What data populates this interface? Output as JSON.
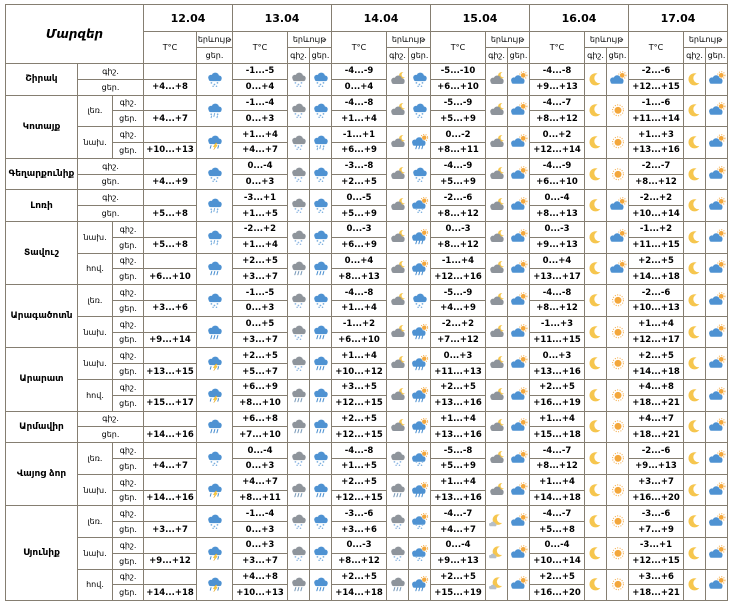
{
  "header": {
    "title": "Մարզեր",
    "temp": "T°C",
    "phenomenon": "երևույթ",
    "night": "գիշ.",
    "day": "ցեր."
  },
  "dates": [
    "12.04",
    "13.04",
    "14.04",
    "15.04",
    "16.04",
    "17.04"
  ],
  "colors": {
    "border": "#857e71",
    "cloud_blue": "#4e92d2",
    "cloud_gray": "#8e949b",
    "cloud_light": "#b6bfc7",
    "sun": "#f3a73c",
    "moon": "#f6c64e",
    "snow_dot": "#79aede",
    "snow_dot_dim": "#8fb7e2",
    "rain_line": "#4e92d2",
    "rain_line_dim": "#7d9dbb",
    "bolt": "#ffd23e"
  },
  "icon_types": [
    "snow-cloud-icon",
    "sleet-cloud-icon",
    "rain-cloud-icon",
    "storm-cloud-icon",
    "gray-snow-cloud-icon",
    "gray-rain-cloud-icon",
    "cloud-moon-icon",
    "moon-icon",
    "moon-small-cloud-icon",
    "sun-icon",
    "sun-cloud-icon",
    "sun-cloud-snow-icon",
    "sun-cloud-rain-icon"
  ],
  "regions": [
    {
      "name": "Շիրակ",
      "zones": [
        {
          "level": null,
          "night_temps": [
            "",
            "-1...-5",
            "-4...-9",
            "-5...-10",
            "-4...-8",
            "-2...-6"
          ],
          "day_temps": [
            "+4...+8",
            "0...+4",
            "0...+4",
            "+6...+10",
            "+9...+13",
            "+12...+15"
          ],
          "night_icons": [
            null,
            "gray-snow",
            "cloud-moon",
            "cloud-moon",
            "moon",
            "moon"
          ],
          "day_icons": [
            "snow",
            "snow",
            "snow",
            "sun-cloud",
            "sun-cloud",
            "sun-cloud"
          ]
        }
      ]
    },
    {
      "name": "Կոտայք",
      "zones": [
        {
          "level": "լեռ.",
          "night_temps": [
            "",
            "-1...-4",
            "-4...-8",
            "-5...-9",
            "-4...-7",
            "-1...-6"
          ],
          "day_temps": [
            "+4...+7",
            "0...+3",
            "+1...+4",
            "+5...+9",
            "+8...+12",
            "+11...+14"
          ],
          "night_icons": [
            null,
            "gray-snow",
            "cloud-moon",
            "cloud-moon",
            "moon",
            "moon"
          ],
          "day_icons": [
            "sleet",
            "snow",
            "snow",
            "sun-cloud",
            "sun",
            "sun-cloud"
          ]
        },
        {
          "level": "նախ.",
          "night_temps": [
            "",
            "+1...+4",
            "-1...+1",
            "0...-2",
            "0...+2",
            "+1...+3"
          ],
          "day_temps": [
            "+10...+13",
            "+4...+7",
            "+6...+9",
            "+8...+11",
            "+12...+14",
            "+13...+16"
          ],
          "night_icons": [
            null,
            "gray-snow",
            "cloud-moon",
            "cloud-moon",
            "moon",
            "moon"
          ],
          "day_icons": [
            "storm",
            "sleet",
            "sun-cloud-rain",
            "sun-cloud",
            "sun",
            "sun-cloud"
          ]
        }
      ]
    },
    {
      "name": "Գեղարքունիք",
      "zones": [
        {
          "level": null,
          "night_temps": [
            "",
            "0...-4",
            "-3...-8",
            "-4...-9",
            "-4...-9",
            "-2...-7"
          ],
          "day_temps": [
            "+4...+9",
            "0...+3",
            "+2...+5",
            "+5...+9",
            "+6...+10",
            "+8...+12"
          ],
          "night_icons": [
            null,
            "gray-snow",
            "cloud-moon",
            "cloud-moon",
            "moon",
            "moon"
          ],
          "day_icons": [
            "snow",
            "snow",
            "snow",
            "sun-cloud",
            "sun",
            "sun-cloud"
          ]
        }
      ]
    },
    {
      "name": "Լոռի",
      "zones": [
        {
          "level": null,
          "night_temps": [
            "",
            "-3...+1",
            "0...-5",
            "-2...-6",
            "0...-4",
            "-2...+2"
          ],
          "day_temps": [
            "+5...+8",
            "+1...+5",
            "+5...+9",
            "+8...+12",
            "+8...+13",
            "+10...+14"
          ],
          "night_icons": [
            null,
            "gray-snow",
            "cloud-moon",
            "cloud-moon",
            "moon",
            "moon"
          ],
          "day_icons": [
            "sleet",
            "snow",
            "sun-cloud-snow",
            "sun-cloud",
            "sun-cloud",
            "sun-cloud"
          ]
        }
      ]
    },
    {
      "name": "Տավուշ",
      "zones": [
        {
          "level": "նախ.",
          "night_temps": [
            "",
            "-2...+2",
            "0...-3",
            "0...-3",
            "0...-3",
            "-1...+2"
          ],
          "day_temps": [
            "+5...+8",
            "+1...+4",
            "+6...+9",
            "+8...+12",
            "+9...+13",
            "+11...+15"
          ],
          "night_icons": [
            null,
            "gray-snow",
            "cloud-moon",
            "cloud-moon",
            "moon",
            "moon"
          ],
          "day_icons": [
            "sleet",
            "snow",
            "sun-cloud-rain",
            "sun-cloud",
            "sun-cloud",
            "sun-cloud"
          ]
        },
        {
          "level": "հով.",
          "night_temps": [
            "",
            "+2...+5",
            "0...+4",
            "-1...+4",
            "0...+4",
            "+2...+5"
          ],
          "day_temps": [
            "+6...+10",
            "+3...+7",
            "+8...+13",
            "+12...+16",
            "+13...+17",
            "+14...+18"
          ],
          "night_icons": [
            null,
            "gray-rain",
            "cloud-moon",
            "cloud-moon",
            "moon",
            "moon"
          ],
          "day_icons": [
            "rain",
            "rain",
            "sun-cloud-rain",
            "sun-cloud",
            "sun-cloud",
            "sun-cloud"
          ]
        }
      ]
    },
    {
      "name": "Արագածոտն",
      "zones": [
        {
          "level": "լեռ.",
          "night_temps": [
            "",
            "-1...-5",
            "-4...-8",
            "-5...-9",
            "-4...-8",
            "-2...-6"
          ],
          "day_temps": [
            "+3...+6",
            "0...+3",
            "+1...+4",
            "+4...+9",
            "+8...+12",
            "+10...+13"
          ],
          "night_icons": [
            null,
            "gray-snow",
            "cloud-moon",
            "cloud-moon",
            "moon",
            "moon"
          ],
          "day_icons": [
            "snow",
            "snow",
            "snow",
            "sun-cloud",
            "sun",
            "sun-cloud"
          ]
        },
        {
          "level": "նախ.",
          "night_temps": [
            "",
            "0...+5",
            "-1...+2",
            "-2...+2",
            "-1...+3",
            "+1...+4"
          ],
          "day_temps": [
            "+9...+14",
            "+3...+7",
            "+6...+10",
            "+7...+12",
            "+11...+15",
            "+12...+17"
          ],
          "night_icons": [
            null,
            "gray-snow",
            "cloud-moon",
            "cloud-moon",
            "moon",
            "moon"
          ],
          "day_icons": [
            "rain",
            "rain",
            "sun-cloud-rain",
            "sun-cloud",
            "sun",
            "sun-cloud"
          ]
        }
      ]
    },
    {
      "name": "Արարատ",
      "zones": [
        {
          "level": "նախ.",
          "night_temps": [
            "",
            "+2...+5",
            "+1...+4",
            "0...+3",
            "0...+3",
            "+2...+5"
          ],
          "day_temps": [
            "+13...+15",
            "+5...+7",
            "+10...+12",
            "+11...+13",
            "+13...+16",
            "+14...+18"
          ],
          "night_icons": [
            null,
            "gray-snow",
            "cloud-moon",
            "cloud-moon",
            "moon",
            "moon"
          ],
          "day_icons": [
            "storm",
            "rain",
            "sun-cloud-rain",
            "sun-cloud",
            "sun",
            "sun-cloud"
          ]
        },
        {
          "level": "հով.",
          "night_temps": [
            "",
            "+6...+9",
            "+3...+5",
            "+2...+5",
            "+2...+5",
            "+4...+8"
          ],
          "day_temps": [
            "+15...+17",
            "+8...+10",
            "+12...+15",
            "+13...+16",
            "+16...+19",
            "+18...+21"
          ],
          "night_icons": [
            null,
            "gray-rain",
            "cloud-moon",
            "cloud-moon",
            "moon",
            "moon"
          ],
          "day_icons": [
            "storm",
            "rain",
            "sun-cloud-rain",
            "sun-cloud",
            "sun",
            "sun-cloud"
          ]
        }
      ]
    },
    {
      "name": "Արմավիր",
      "zones": [
        {
          "level": null,
          "night_temps": [
            "",
            "+6...+8",
            "+2...+5",
            "+1...+4",
            "+1...+4",
            "+4...+7"
          ],
          "day_temps": [
            "+14...+16",
            "+7...+10",
            "+12...+15",
            "+13...+16",
            "+15...+18",
            "+18...+21"
          ],
          "night_icons": [
            null,
            "gray-rain",
            "cloud-moon",
            "cloud-moon",
            "moon",
            "moon"
          ],
          "day_icons": [
            "rain",
            "rain",
            "sun-cloud-rain",
            "sun-cloud",
            "sun",
            "sun-cloud"
          ]
        }
      ]
    },
    {
      "name": "Վայոց ձոր",
      "zones": [
        {
          "level": "լեռ.",
          "night_temps": [
            "",
            "0...-4",
            "-4...-8",
            "-5...-8",
            "-4...-7",
            "-2...-6"
          ],
          "day_temps": [
            "+4...+7",
            "0...+3",
            "+1...+5",
            "+5...+9",
            "+8...+12",
            "+9...+13"
          ],
          "night_icons": [
            null,
            "gray-snow",
            "gray-snow",
            "cloud-moon",
            "moon",
            "moon"
          ],
          "day_icons": [
            "snow",
            "snow",
            "sun-cloud-snow",
            "sun-cloud",
            "sun",
            "sun-cloud"
          ]
        },
        {
          "level": "նախ.",
          "night_temps": [
            "",
            "+4...+7",
            "+2...+5",
            "+1...+4",
            "+1...+4",
            "+3...+7"
          ],
          "day_temps": [
            "+14...+16",
            "+8...+11",
            "+12...+15",
            "+13...+16",
            "+14...+18",
            "+16...+20"
          ],
          "night_icons": [
            null,
            "gray-rain",
            "gray-rain",
            "cloud-moon",
            "moon",
            "moon"
          ],
          "day_icons": [
            "storm",
            "rain",
            "sun-cloud-rain",
            "sun-cloud",
            "sun",
            "sun-cloud"
          ]
        }
      ]
    },
    {
      "name": "Սյունիք",
      "zones": [
        {
          "level": "լեռ.",
          "night_temps": [
            "",
            "-1...-4",
            "-3...-6",
            "-4...-7",
            "-4...-7",
            "-3...-6"
          ],
          "day_temps": [
            "+3...+7",
            "0...+3",
            "+3...+6",
            "+4...+7",
            "+5...+8",
            "+7...+9"
          ],
          "night_icons": [
            null,
            "gray-snow",
            "gray-snow",
            "moon-cloud",
            "moon",
            "moon"
          ],
          "day_icons": [
            "snow",
            "snow",
            "sun-cloud-snow",
            "sun-cloud",
            "sun",
            "sun-cloud"
          ]
        },
        {
          "level": "նախ.",
          "night_temps": [
            "",
            "0...+3",
            "0...-3",
            "0...-4",
            "0...-4",
            "-3...+1"
          ],
          "day_temps": [
            "+9...+12",
            "+3...+7",
            "+8...+12",
            "+9...+13",
            "+10...+14",
            "+12...+15"
          ],
          "night_icons": [
            null,
            "gray-snow",
            "gray-snow",
            "moon-cloud",
            "moon",
            "moon"
          ],
          "day_icons": [
            "storm",
            "snow",
            "sun-cloud-snow",
            "sun-cloud",
            "sun",
            "sun-cloud"
          ]
        },
        {
          "level": "հով.",
          "night_temps": [
            "",
            "+4...+8",
            "+2...+5",
            "+2...+5",
            "+2...+5",
            "+3...+6"
          ],
          "day_temps": [
            "+14...+18",
            "+10...+13",
            "+14...+18",
            "+15...+19",
            "+16...+20",
            "+18...+21"
          ],
          "night_icons": [
            null,
            "gray-rain",
            "gray-rain",
            "moon-cloud",
            "moon",
            "moon"
          ],
          "day_icons": [
            "storm",
            "rain",
            "sun-cloud-rain",
            "sun-cloud",
            "sun",
            "sun-cloud"
          ]
        }
      ]
    }
  ]
}
